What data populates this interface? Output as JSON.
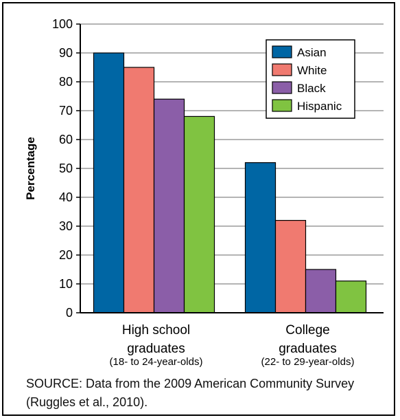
{
  "chart_data": {
    "type": "bar",
    "ylabel": "Percentage",
    "ylim": [
      0,
      100
    ],
    "yticks": [
      0,
      10,
      20,
      30,
      40,
      50,
      60,
      70,
      80,
      90,
      100
    ],
    "grid": true,
    "legend_position": "top-right",
    "categories": [
      {
        "label": "High school\ngraduates",
        "sublabel": "(18- to 24-year-olds)"
      },
      {
        "label": "College\ngraduates",
        "sublabel": "(22- to 29-year-olds)"
      }
    ],
    "series": [
      {
        "name": "Asian",
        "color": "#0066a4",
        "values": [
          90,
          52
        ]
      },
      {
        "name": "White",
        "color": "#f07a70",
        "values": [
          85,
          32
        ]
      },
      {
        "name": "Black",
        "color": "#8b5ea8",
        "values": [
          74,
          15
        ]
      },
      {
        "name": "Hispanic",
        "color": "#80c341",
        "values": [
          68,
          11
        ]
      }
    ]
  },
  "source_text": "SOURCE: Data from the 2009 American Community Survey (Ruggles et al., 2010)."
}
